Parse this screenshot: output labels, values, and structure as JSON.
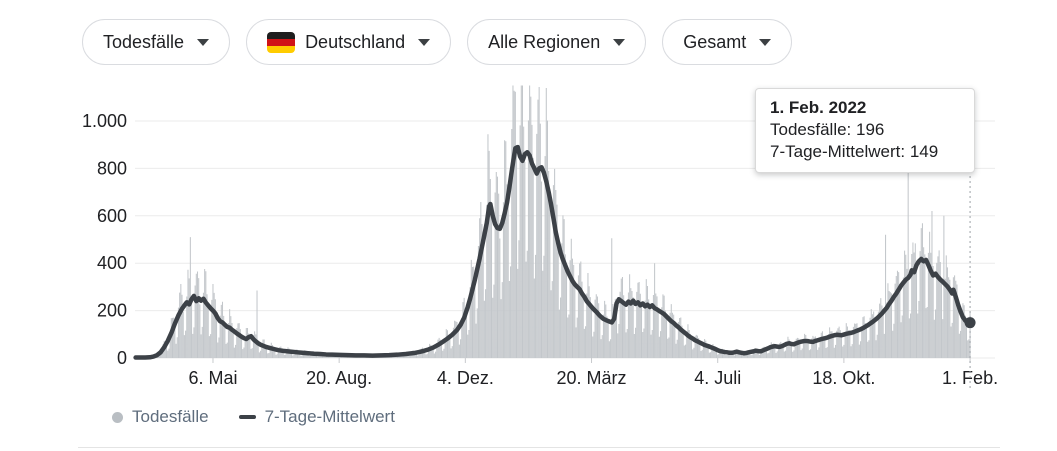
{
  "filters": {
    "metric": {
      "label": "Todesfälle"
    },
    "country": {
      "label": "Deutschland",
      "flag": "germany-flag"
    },
    "region": {
      "label": "Alle Regionen"
    },
    "aggregation": {
      "label": "Gesamt"
    }
  },
  "tooltip": {
    "title": "1. Feb. 2022",
    "deaths_line": "Todesfälle: 196",
    "average_line": "7-Tage-Mittelwert: 149"
  },
  "legend": {
    "bars_label": "Todesfälle",
    "line_label": "7-Tage-Mittelwert"
  },
  "colors": {
    "bar": "#c3c7cb",
    "line": "#3c4147",
    "grid": "#ebebeb",
    "axis_text": "#202124",
    "legend_text": "#5f6d7d",
    "crosshair": "#9aa0a6",
    "pill_border": "#dadce0"
  },
  "chart_data": {
    "type": "bar+line",
    "title": "",
    "xlabel": "",
    "ylabel": "",
    "grid": true,
    "legend_position": "bottom-left",
    "x_tick_labels": [
      "6. Mai",
      "20. Aug.",
      "4. Dez.",
      "20. März",
      "4. Juli",
      "18. Okt.",
      "1. Feb."
    ],
    "x_tick_days": [
      65,
      171,
      277,
      383,
      489,
      595,
      701
    ],
    "y_tick_labels": [
      "0",
      "200",
      "400",
      "600",
      "800",
      "1.000"
    ],
    "y_tick_values": [
      0,
      200,
      400,
      600,
      800,
      1000
    ],
    "ylim": [
      0,
      1150
    ],
    "days_total": 702,
    "bar_series": {
      "name": "Todesfälle",
      "weekday_factors": [
        0.5,
        1.05,
        1.38,
        1.45,
        1.35,
        1.1,
        0.45
      ],
      "wobble": [
        [
          0.12,
          0.9
        ],
        [
          0.06,
          2.17
        ]
      ],
      "spikes": {
        "46": 510,
        "102": 285,
        "400": 505,
        "436": 400,
        "630": 520,
        "649": 790,
        "669": 620,
        "679": 600,
        "701": 196
      }
    },
    "line_series": {
      "name": "7-Tage-Mittelwert",
      "points": [
        [
          0,
          2
        ],
        [
          8,
          2
        ],
        [
          12,
          3
        ],
        [
          15,
          6
        ],
        [
          18,
          12
        ],
        [
          21,
          24
        ],
        [
          24,
          45
        ],
        [
          27,
          72
        ],
        [
          30,
          105
        ],
        [
          33,
          145
        ],
        [
          36,
          180
        ],
        [
          39,
          208
        ],
        [
          41,
          222
        ],
        [
          43,
          235
        ],
        [
          45,
          226
        ],
        [
          47,
          248
        ],
        [
          49,
          262
        ],
        [
          51,
          240
        ],
        [
          53,
          252
        ],
        [
          55,
          242
        ],
        [
          57,
          250
        ],
        [
          59,
          234
        ],
        [
          61,
          222
        ],
        [
          63,
          210
        ],
        [
          65,
          200
        ],
        [
          67,
          188
        ],
        [
          69,
          168
        ],
        [
          71,
          155
        ],
        [
          73,
          150
        ],
        [
          75,
          140
        ],
        [
          77,
          131
        ],
        [
          79,
          128
        ],
        [
          81,
          119
        ],
        [
          83,
          112
        ],
        [
          85,
          104
        ],
        [
          87,
          97
        ],
        [
          89,
          90
        ],
        [
          91,
          84
        ],
        [
          93,
          80
        ],
        [
          95,
          88
        ],
        [
          97,
          92
        ],
        [
          99,
          79
        ],
        [
          101,
          70
        ],
        [
          103,
          62
        ],
        [
          105,
          56
        ],
        [
          107,
          52
        ],
        [
          110,
          46
        ],
        [
          113,
          42
        ],
        [
          116,
          38
        ],
        [
          120,
          33
        ],
        [
          124,
          30
        ],
        [
          128,
          28
        ],
        [
          132,
          26
        ],
        [
          136,
          24
        ],
        [
          140,
          22
        ],
        [
          145,
          20
        ],
        [
          150,
          18
        ],
        [
          155,
          17
        ],
        [
          160,
          15
        ],
        [
          165,
          14
        ],
        [
          171,
          13
        ],
        [
          178,
          12
        ],
        [
          185,
          11
        ],
        [
          192,
          11
        ],
        [
          199,
          10
        ],
        [
          206,
          11
        ],
        [
          213,
          12
        ],
        [
          220,
          14
        ],
        [
          227,
          17
        ],
        [
          234,
          21
        ],
        [
          238,
          25
        ],
        [
          242,
          30
        ],
        [
          246,
          36
        ],
        [
          250,
          44
        ],
        [
          254,
          55
        ],
        [
          258,
          68
        ],
        [
          262,
          82
        ],
        [
          266,
          98
        ],
        [
          270,
          118
        ],
        [
          273,
          140
        ],
        [
          276,
          170
        ],
        [
          279,
          215
        ],
        [
          281,
          250
        ],
        [
          283,
          290
        ],
        [
          285,
          330
        ],
        [
          287,
          375
        ],
        [
          289,
          420
        ],
        [
          291,
          470
        ],
        [
          293,
          520
        ],
        [
          295,
          570
        ],
        [
          297,
          640
        ],
        [
          298,
          650
        ],
        [
          300,
          600
        ],
        [
          302,
          565
        ],
        [
          304,
          548
        ],
        [
          306,
          545
        ],
        [
          308,
          570
        ],
        [
          310,
          610
        ],
        [
          312,
          655
        ],
        [
          314,
          720
        ],
        [
          316,
          790
        ],
        [
          318,
          855
        ],
        [
          319,
          885
        ],
        [
          321,
          890
        ],
        [
          323,
          850
        ],
        [
          325,
          832
        ],
        [
          327,
          860
        ],
        [
          329,
          868
        ],
        [
          331,
          855
        ],
        [
          333,
          820
        ],
        [
          335,
          800
        ],
        [
          337,
          778
        ],
        [
          339,
          800
        ],
        [
          341,
          805
        ],
        [
          343,
          782
        ],
        [
          345,
          745
        ],
        [
          347,
          700
        ],
        [
          349,
          648
        ],
        [
          351,
          590
        ],
        [
          353,
          530
        ],
        [
          355,
          485
        ],
        [
          357,
          445
        ],
        [
          359,
          415
        ],
        [
          361,
          390
        ],
        [
          363,
          365
        ],
        [
          365,
          345
        ],
        [
          367,
          325
        ],
        [
          369,
          310
        ],
        [
          371,
          300
        ],
        [
          373,
          290
        ],
        [
          375,
          272
        ],
        [
          377,
          258
        ],
        [
          379,
          240
        ],
        [
          382,
          222
        ],
        [
          384,
          210
        ],
        [
          387,
          195
        ],
        [
          390,
          178
        ],
        [
          393,
          165
        ],
        [
          396,
          158
        ],
        [
          398,
          154
        ],
        [
          400,
          150
        ],
        [
          402,
          165
        ],
        [
          404,
          230
        ],
        [
          406,
          248
        ],
        [
          408,
          240
        ],
        [
          410,
          232
        ],
        [
          412,
          225
        ],
        [
          414,
          238
        ],
        [
          416,
          230
        ],
        [
          418,
          242
        ],
        [
          420,
          228
        ],
        [
          422,
          235
        ],
        [
          424,
          222
        ],
        [
          426,
          230
        ],
        [
          428,
          218
        ],
        [
          430,
          225
        ],
        [
          432,
          215
        ],
        [
          434,
          222
        ],
        [
          436,
          210
        ],
        [
          438,
          205
        ],
        [
          440,
          198
        ],
        [
          442,
          192
        ],
        [
          444,
          185
        ],
        [
          446,
          175
        ],
        [
          448,
          165
        ],
        [
          450,
          155
        ],
        [
          452,
          148
        ],
        [
          454,
          138
        ],
        [
          456,
          130
        ],
        [
          458,
          120
        ],
        [
          460,
          112
        ],
        [
          462,
          104
        ],
        [
          464,
          95
        ],
        [
          466,
          88
        ],
        [
          468,
          82
        ],
        [
          470,
          75
        ],
        [
          472,
          70
        ],
        [
          474,
          65
        ],
        [
          476,
          60
        ],
        [
          478,
          55
        ],
        [
          481,
          50
        ],
        [
          484,
          44
        ],
        [
          487,
          38
        ],
        [
          489,
          33
        ],
        [
          491,
          29
        ],
        [
          493,
          27
        ],
        [
          495,
          25
        ],
        [
          497,
          24
        ],
        [
          499,
          22
        ],
        [
          501,
          22
        ],
        [
          503,
          24
        ],
        [
          505,
          27
        ],
        [
          507,
          24
        ],
        [
          509,
          22
        ],
        [
          511,
          20
        ],
        [
          513,
          21
        ],
        [
          515,
          24
        ],
        [
          517,
          26
        ],
        [
          519,
          28
        ],
        [
          521,
          31
        ],
        [
          523,
          29
        ],
        [
          525,
          28
        ],
        [
          527,
          32
        ],
        [
          529,
          36
        ],
        [
          531,
          40
        ],
        [
          533,
          45
        ],
        [
          535,
          48
        ],
        [
          537,
          50
        ],
        [
          539,
          48
        ],
        [
          541,
          47
        ],
        [
          543,
          50
        ],
        [
          545,
          55
        ],
        [
          547,
          60
        ],
        [
          549,
          62
        ],
        [
          551,
          59
        ],
        [
          553,
          58
        ],
        [
          555,
          62
        ],
        [
          557,
          66
        ],
        [
          559,
          69
        ],
        [
          561,
          71
        ],
        [
          563,
          72
        ],
        [
          565,
          71
        ],
        [
          567,
          69
        ],
        [
          569,
          68
        ],
        [
          571,
          72
        ],
        [
          573,
          75
        ],
        [
          575,
          78
        ],
        [
          577,
          81
        ],
        [
          579,
          83
        ],
        [
          581,
          86
        ],
        [
          583,
          90
        ],
        [
          585,
          93
        ],
        [
          587,
          96
        ],
        [
          589,
          98
        ],
        [
          591,
          97
        ],
        [
          593,
          96
        ],
        [
          595,
          99
        ],
        [
          597,
          102
        ],
        [
          599,
          104
        ],
        [
          601,
          106
        ],
        [
          603,
          109
        ],
        [
          605,
          113
        ],
        [
          607,
          117
        ],
        [
          609,
          121
        ],
        [
          611,
          126
        ],
        [
          613,
          132
        ],
        [
          615,
          138
        ],
        [
          617,
          145
        ],
        [
          619,
          152
        ],
        [
          621,
          160
        ],
        [
          623,
          168
        ],
        [
          625,
          178
        ],
        [
          627,
          188
        ],
        [
          629,
          200
        ],
        [
          631,
          212
        ],
        [
          633,
          228
        ],
        [
          635,
          242
        ],
        [
          637,
          258
        ],
        [
          639,
          272
        ],
        [
          641,
          288
        ],
        [
          643,
          305
        ],
        [
          645,
          318
        ],
        [
          647,
          330
        ],
        [
          649,
          338
        ],
        [
          651,
          352
        ],
        [
          652,
          370
        ],
        [
          654,
          362
        ],
        [
          656,
          392
        ],
        [
          658,
          408
        ],
        [
          660,
          418
        ],
        [
          662,
          408
        ],
        [
          664,
          414
        ],
        [
          666,
          392
        ],
        [
          668,
          368
        ],
        [
          670,
          348
        ],
        [
          672,
          356
        ],
        [
          674,
          342
        ],
        [
          676,
          331
        ],
        [
          678,
          322
        ],
        [
          680,
          312
        ],
        [
          682,
          302
        ],
        [
          684,
          288
        ],
        [
          686,
          272
        ],
        [
          687,
          288
        ],
        [
          689,
          258
        ],
        [
          691,
          224
        ],
        [
          693,
          196
        ],
        [
          695,
          172
        ],
        [
          697,
          158
        ],
        [
          699,
          148
        ],
        [
          701,
          149
        ]
      ]
    },
    "end_marker": {
      "day": 701,
      "value": 149
    },
    "crosshair_day": 701
  }
}
